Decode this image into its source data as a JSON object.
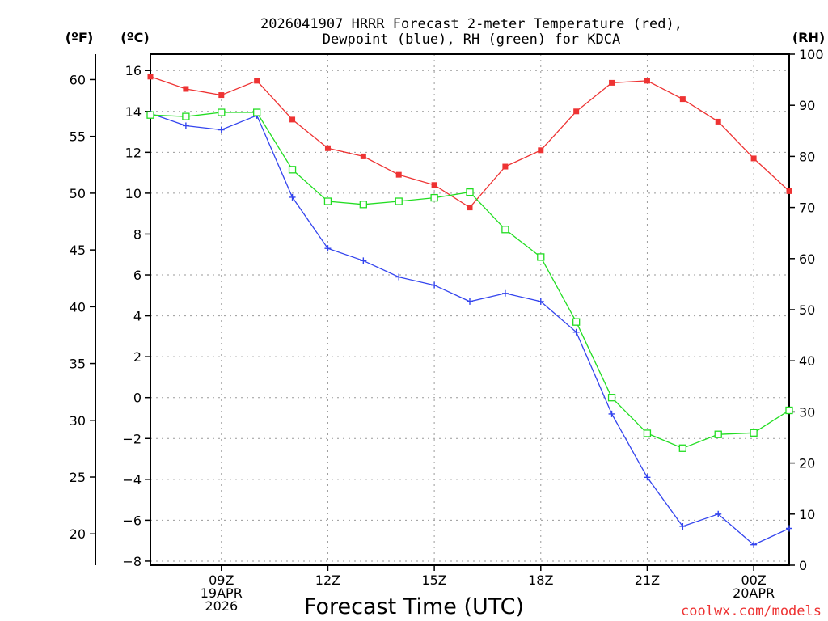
{
  "chart_data": {
    "type": "line",
    "title_line1": "2026041907 HRRR Forecast 2-meter Temperature (red),",
    "title_line2": "Dewpoint (blue), RH (green) for KDCA",
    "xlabel": "Forecast Time (UTC)",
    "credit": "coolwx.com/models",
    "unit_f": "(ºF)",
    "unit_c": "(ºC)",
    "unit_rh": "(RH)",
    "x_hours": [
      7,
      8,
      9,
      10,
      11,
      12,
      13,
      14,
      15,
      16,
      17,
      18,
      19,
      20,
      21,
      22,
      23,
      24,
      25
    ],
    "xlim": [
      7,
      25
    ],
    "ylim_c": [
      -8.2,
      16.8
    ],
    "ylim_f": [
      17.24,
      62.24
    ],
    "ylim_rh": [
      0,
      100
    ],
    "x_ticks": [
      {
        "hour": 9,
        "lines": [
          "09Z",
          "19APR",
          "2026"
        ]
      },
      {
        "hour": 12,
        "lines": [
          "12Z"
        ]
      },
      {
        "hour": 15,
        "lines": [
          "15Z"
        ]
      },
      {
        "hour": 18,
        "lines": [
          "18Z"
        ]
      },
      {
        "hour": 21,
        "lines": [
          "21Z"
        ]
      },
      {
        "hour": 24,
        "lines": [
          "00Z",
          "20APR"
        ]
      }
    ],
    "y_ticks_c": [
      16,
      14,
      12,
      10,
      8,
      6,
      4,
      2,
      0,
      -2,
      -4,
      -6,
      -8
    ],
    "y_ticks_c_labels": [
      "16",
      "14",
      "12",
      "10",
      "8",
      "6",
      "4",
      "2",
      "0",
      "−2",
      "−4",
      "−6",
      "−8"
    ],
    "y_ticks_f": [
      60,
      55,
      50,
      45,
      40,
      35,
      30,
      25,
      20
    ],
    "y_ticks_rh": [
      100,
      90,
      80,
      70,
      60,
      50,
      40,
      30,
      20,
      10,
      0
    ],
    "series": [
      {
        "name": "Temperature",
        "unit": "C",
        "color": "#ee3333",
        "marker": "filled-square",
        "values": [
          15.7,
          15.1,
          14.8,
          15.5,
          13.6,
          12.2,
          11.8,
          10.9,
          10.4,
          9.3,
          11.3,
          12.1,
          14.0,
          15.4,
          15.5,
          14.6,
          13.5,
          11.7,
          10.1
        ]
      },
      {
        "name": "Dewpoint",
        "unit": "C",
        "color": "#3344ee",
        "marker": "plus",
        "values": [
          13.9,
          13.3,
          13.1,
          13.8,
          9.8,
          7.3,
          6.7,
          5.9,
          5.5,
          4.7,
          5.1,
          4.7,
          3.2,
          -0.8,
          -3.9,
          -6.3,
          -5.7,
          -7.2,
          -6.4
        ]
      },
      {
        "name": "RH",
        "unit": "%",
        "color": "#22dd22",
        "marker": "open-square",
        "values": [
          88.1,
          87.8,
          88.6,
          88.6,
          77.4,
          71.2,
          70.6,
          71.2,
          71.9,
          73.0,
          65.7,
          60.3,
          47.6,
          32.8,
          25.8,
          22.9,
          25.6,
          25.9,
          30.3
        ]
      }
    ]
  }
}
